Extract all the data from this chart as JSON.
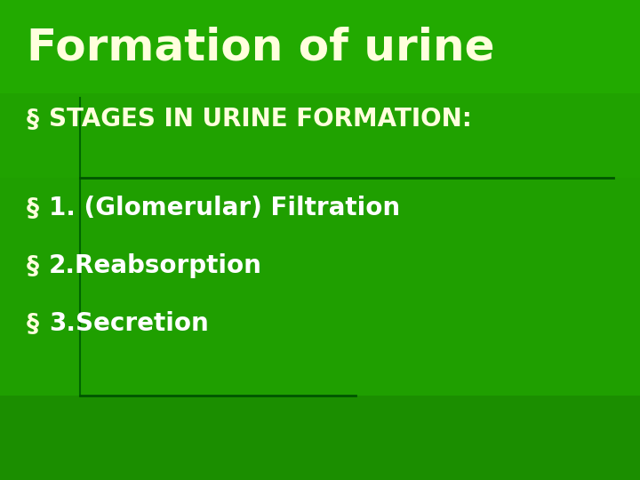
{
  "bg_color": "#22aa00",
  "title": "Formation of urine",
  "title_color": "#ffffdd",
  "title_fontsize": 36,
  "bullet_symbol": "§",
  "bullet1_color": "#ffffdd",
  "bullet_color": "#ffffff",
  "bullet_fontsize": 20,
  "bullet1": "STAGES IN URINE FORMATION:",
  "bullet2": "1. (Glomerular) Filtration",
  "bullet3": "2.Reabsorption",
  "bullet4": "3.Secretion",
  "line_color": "#006600",
  "dark_box1_color": "#1e9900",
  "dark_box2_color": "#1a8800",
  "vertical_line_color": "#006600",
  "horiz_line_color": "#005500"
}
